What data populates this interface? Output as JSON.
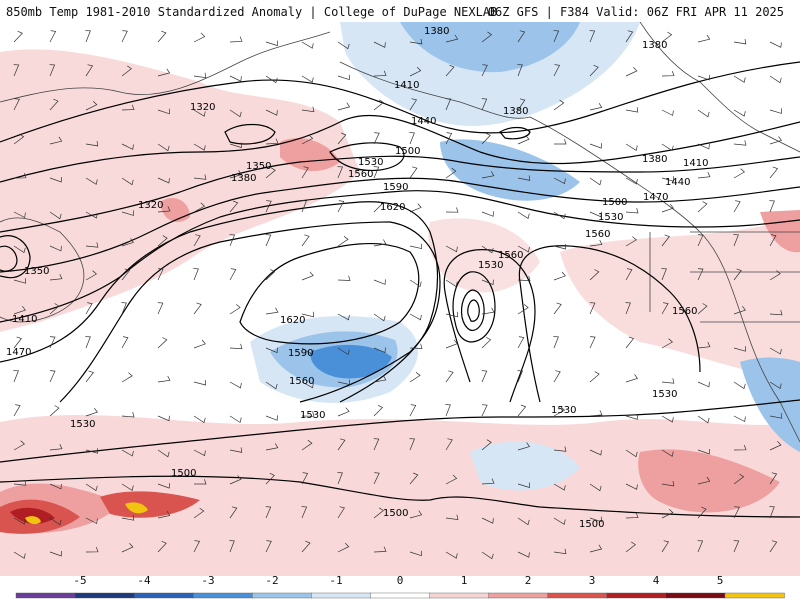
{
  "header": {
    "title_left": "850mb Temp 1981-2010 Standardized Anomaly | College of DuPage NEXLAB",
    "title_right": "06Z GFS | F384 Valid: 06Z FRI APR 11 2025"
  },
  "colorbar": {
    "ticks": [
      "-5",
      "-4",
      "-3",
      "-2",
      "-1",
      "0",
      "1",
      "2",
      "3",
      "4",
      "5"
    ],
    "colors": [
      "#6a3d9a",
      "#1f3a7a",
      "#2b62b8",
      "#4a90d9",
      "#9cc4ea",
      "#d6e6f5",
      "#ffffff",
      "#f7d4d4",
      "#ee9f9f",
      "#d9534f",
      "#b01e24",
      "#7a0a14",
      "#f2c40f"
    ]
  },
  "map": {
    "contour_labels": [
      {
        "text": "1380"
      },
      {
        "text": "1380"
      },
      {
        "text": "1410"
      },
      {
        "text": "1380"
      },
      {
        "text": "1440"
      },
      {
        "text": "1320"
      },
      {
        "text": "1350"
      },
      {
        "text": "1380"
      },
      {
        "text": "1500"
      },
      {
        "text": "1530"
      },
      {
        "text": "1560"
      },
      {
        "text": "1590"
      },
      {
        "text": "1620"
      },
      {
        "text": "1320"
      },
      {
        "text": "1350"
      },
      {
        "text": "1410"
      },
      {
        "text": "1470"
      },
      {
        "text": "1380"
      },
      {
        "text": "1410"
      },
      {
        "text": "1440"
      },
      {
        "text": "1470"
      },
      {
        "text": "1500"
      },
      {
        "text": "1530"
      },
      {
        "text": "1560"
      },
      {
        "text": "1560"
      },
      {
        "text": "1530"
      },
      {
        "text": "1620"
      },
      {
        "text": "1590"
      },
      {
        "text": "1560"
      },
      {
        "text": "1530"
      },
      {
        "text": "1530"
      },
      {
        "text": "1560"
      },
      {
        "text": "1530"
      },
      {
        "text": "1530"
      },
      {
        "text": "1500"
      },
      {
        "text": "1500"
      },
      {
        "text": "1500"
      }
    ]
  }
}
